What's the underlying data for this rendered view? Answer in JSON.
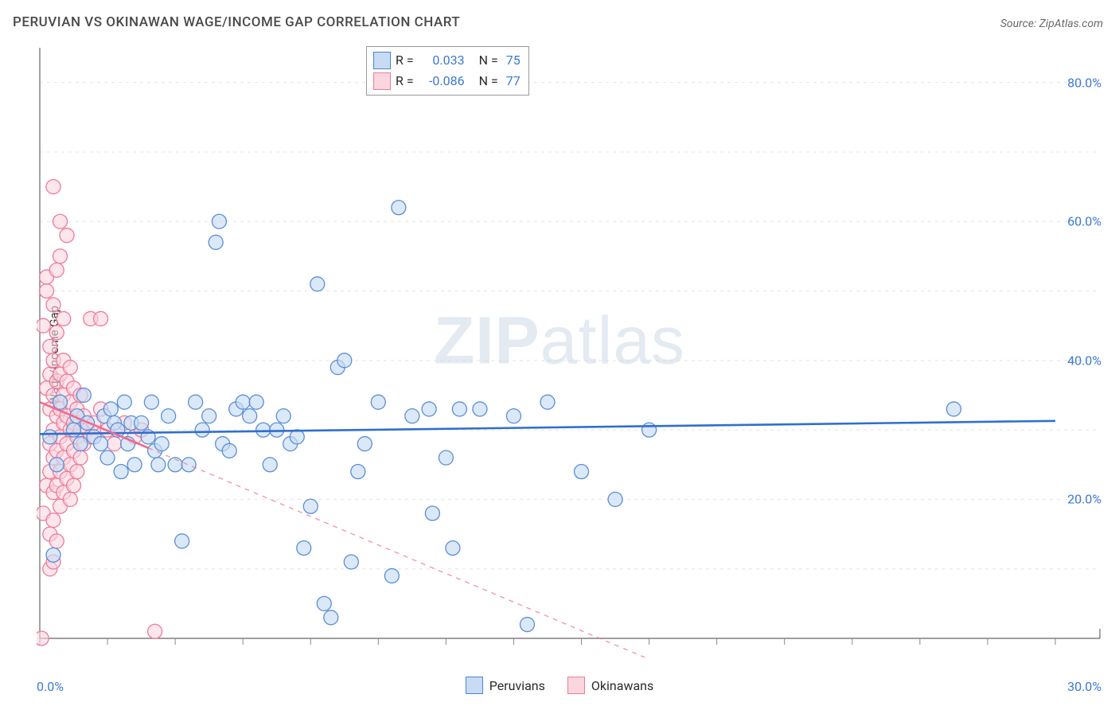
{
  "title": "PERUVIAN VS OKINAWAN WAGE/INCOME GAP CORRELATION CHART",
  "source_prefix": "Source: ",
  "source_name": "ZipAtlas.com",
  "y_axis_label": "Wage/Income Gap",
  "watermark_bold": "ZIP",
  "watermark_light": "atlas",
  "chart": {
    "type": "scatter-with-trend",
    "background_color": "#ffffff",
    "grid_color": "#e4e4e4",
    "axis_color": "#666666",
    "tick_color": "#888888",
    "text_color": "#2b2b2b",
    "value_color": "#3b78d8",
    "xlim": [
      0,
      30
    ],
    "ylim": [
      0,
      85
    ],
    "x_min_label": "0.0%",
    "x_max_label": "30.0%",
    "x_ticks": [
      0,
      2,
      4,
      6,
      8,
      10,
      12,
      14,
      16,
      18,
      20,
      22,
      24,
      26,
      28,
      30
    ],
    "y_grid": [
      10,
      20,
      30,
      40,
      50,
      60,
      70,
      80
    ],
    "y_tick_labels": [
      {
        "v": 20,
        "label": "20.0%"
      },
      {
        "v": 40,
        "label": "40.0%"
      },
      {
        "v": 60,
        "label": "60.0%"
      },
      {
        "v": 80,
        "label": "80.0%"
      }
    ],
    "marker_radius": 9,
    "marker_stroke_width": 1.3,
    "trend_width": 2.6,
    "trend_dash_extrap": "6,6",
    "series": [
      {
        "id": "peruvians",
        "label": "Peruvians",
        "fill": "#c8dbf5",
        "stroke": "#5a8fd6",
        "fill_opacity": 0.65,
        "trend_color": "#2f6fd0",
        "R": "0.033",
        "N": "75",
        "trend": {
          "x0": 0,
          "y0": 29.4,
          "x1": 30,
          "y1": 31.3,
          "solid_to_x": 30
        },
        "points": [
          [
            0.3,
            29
          ],
          [
            0.5,
            25
          ],
          [
            0.4,
            12
          ],
          [
            0.6,
            34
          ],
          [
            1.0,
            30
          ],
          [
            1.1,
            32
          ],
          [
            1.2,
            28
          ],
          [
            1.3,
            35
          ],
          [
            1.4,
            31
          ],
          [
            1.6,
            29
          ],
          [
            1.8,
            28
          ],
          [
            1.9,
            32
          ],
          [
            2.0,
            26
          ],
          [
            2.1,
            33
          ],
          [
            2.2,
            31
          ],
          [
            2.3,
            30
          ],
          [
            2.5,
            34
          ],
          [
            2.6,
            28
          ],
          [
            2.7,
            31
          ],
          [
            2.8,
            25
          ],
          [
            2.4,
            24
          ],
          [
            3.0,
            31
          ],
          [
            3.2,
            29
          ],
          [
            3.3,
            34
          ],
          [
            3.4,
            27
          ],
          [
            3.6,
            28
          ],
          [
            3.8,
            32
          ],
          [
            3.5,
            25
          ],
          [
            8.6,
            3
          ],
          [
            4.0,
            25
          ],
          [
            4.2,
            14
          ],
          [
            4.4,
            25
          ],
          [
            4.6,
            34
          ],
          [
            4.8,
            30
          ],
          [
            5.0,
            32
          ],
          [
            5.2,
            57
          ],
          [
            5.3,
            60
          ],
          [
            5.4,
            28
          ],
          [
            5.6,
            27
          ],
          [
            5.8,
            33
          ],
          [
            6.0,
            34
          ],
          [
            6.2,
            32
          ],
          [
            6.4,
            34
          ],
          [
            6.6,
            30
          ],
          [
            6.8,
            25
          ],
          [
            7.0,
            30
          ],
          [
            7.2,
            32
          ],
          [
            7.4,
            28
          ],
          [
            7.6,
            29
          ],
          [
            7.8,
            13
          ],
          [
            8.0,
            19
          ],
          [
            8.2,
            51
          ],
          [
            8.4,
            5
          ],
          [
            8.8,
            39
          ],
          [
            9.0,
            40
          ],
          [
            9.2,
            11
          ],
          [
            9.4,
            24
          ],
          [
            9.6,
            28
          ],
          [
            10.0,
            34
          ],
          [
            10.4,
            9
          ],
          [
            10.6,
            62
          ],
          [
            11.0,
            32
          ],
          [
            11.5,
            33
          ],
          [
            11.6,
            18
          ],
          [
            12.0,
            26
          ],
          [
            12.2,
            13
          ],
          [
            12.4,
            33
          ],
          [
            13.0,
            33
          ],
          [
            14.0,
            32
          ],
          [
            14.4,
            2
          ],
          [
            15.0,
            34
          ],
          [
            16.0,
            24
          ],
          [
            17.0,
            20
          ],
          [
            18.0,
            30
          ],
          [
            27.0,
            33
          ]
        ]
      },
      {
        "id": "okinawans",
        "label": "Okinawans",
        "fill": "#fbd6df",
        "stroke": "#ee7a99",
        "fill_opacity": 0.6,
        "trend_color": "#ef6a8e",
        "R": "-0.086",
        "N": "77",
        "trend": {
          "x0": 0,
          "y0": 34.0,
          "x1": 18,
          "y1": -3,
          "solid_to_x": 3.2
        },
        "points": [
          [
            0.05,
            0
          ],
          [
            0.1,
            18
          ],
          [
            0.1,
            45
          ],
          [
            0.2,
            22
          ],
          [
            0.2,
            36
          ],
          [
            0.2,
            50
          ],
          [
            0.2,
            52
          ],
          [
            0.3,
            10
          ],
          [
            0.3,
            15
          ],
          [
            0.3,
            24
          ],
          [
            0.3,
            28
          ],
          [
            0.3,
            33
          ],
          [
            0.3,
            38
          ],
          [
            0.3,
            42
          ],
          [
            0.4,
            11
          ],
          [
            0.4,
            17
          ],
          [
            0.4,
            21
          ],
          [
            0.4,
            26
          ],
          [
            0.4,
            30
          ],
          [
            0.4,
            35
          ],
          [
            0.4,
            40
          ],
          [
            0.4,
            48
          ],
          [
            0.4,
            65
          ],
          [
            0.5,
            14
          ],
          [
            0.5,
            22
          ],
          [
            0.5,
            27
          ],
          [
            0.5,
            32
          ],
          [
            0.5,
            37
          ],
          [
            0.5,
            44
          ],
          [
            0.5,
            53
          ],
          [
            0.6,
            19
          ],
          [
            0.6,
            24
          ],
          [
            0.6,
            29
          ],
          [
            0.6,
            33
          ],
          [
            0.6,
            38
          ],
          [
            0.6,
            55
          ],
          [
            0.6,
            60
          ],
          [
            0.7,
            21
          ],
          [
            0.7,
            26
          ],
          [
            0.7,
            31
          ],
          [
            0.7,
            35
          ],
          [
            0.7,
            40
          ],
          [
            0.7,
            46
          ],
          [
            0.8,
            23
          ],
          [
            0.8,
            28
          ],
          [
            0.8,
            32
          ],
          [
            0.8,
            37
          ],
          [
            0.8,
            58
          ],
          [
            0.9,
            20
          ],
          [
            0.9,
            25
          ],
          [
            0.9,
            30
          ],
          [
            0.9,
            34
          ],
          [
            0.9,
            39
          ],
          [
            1.0,
            22
          ],
          [
            1.0,
            27
          ],
          [
            1.0,
            31
          ],
          [
            1.0,
            36
          ],
          [
            1.1,
            24
          ],
          [
            1.1,
            29
          ],
          [
            1.1,
            33
          ],
          [
            1.2,
            26
          ],
          [
            1.2,
            30
          ],
          [
            1.2,
            35
          ],
          [
            1.3,
            28
          ],
          [
            1.3,
            32
          ],
          [
            1.4,
            30
          ],
          [
            1.5,
            29
          ],
          [
            1.5,
            46
          ],
          [
            1.6,
            31
          ],
          [
            1.8,
            33
          ],
          [
            1.8,
            46
          ],
          [
            2.0,
            30
          ],
          [
            2.2,
            28
          ],
          [
            2.5,
            31
          ],
          [
            2.8,
            29
          ],
          [
            3.0,
            30
          ],
          [
            3.4,
            1
          ]
        ]
      }
    ]
  },
  "stat_box": {
    "r_label": "R =",
    "n_label": "N ="
  },
  "legend": {
    "peruvians": "Peruvians",
    "okinawans": "Okinawans"
  }
}
